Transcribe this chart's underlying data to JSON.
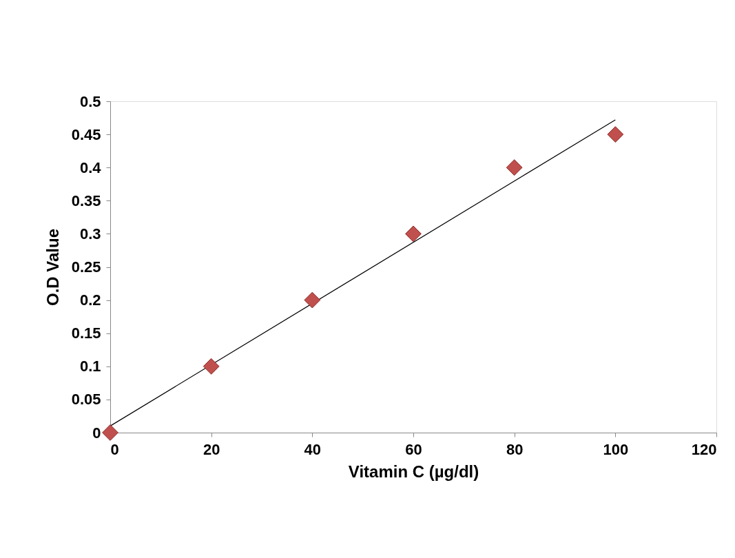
{
  "chart_data": {
    "type": "scatter",
    "xlabel": "Vitamin C (µg/dl)",
    "ylabel": "O.D Value",
    "xlim": [
      0,
      120
    ],
    "ylim": [
      0,
      0.5
    ],
    "xticks": [
      0,
      20,
      40,
      60,
      80,
      100,
      120
    ],
    "yticks": [
      0,
      0.05,
      0.1,
      0.15,
      0.2,
      0.25,
      0.3,
      0.35,
      0.4,
      0.45,
      0.5
    ],
    "grid": false,
    "series": [
      {
        "color": "#c0504d",
        "marker": "diamond",
        "x": [
          0,
          20,
          40,
          60,
          80,
          100
        ],
        "values": [
          0,
          0.1,
          0.2,
          0.3,
          0.4,
          0.45
        ]
      },
      {
        "type": "line",
        "color": "#000000",
        "marker": "none",
        "line_style": "solid",
        "x": [
          0,
          100
        ],
        "values": [
          0.01,
          0.472
        ]
      }
    ]
  }
}
